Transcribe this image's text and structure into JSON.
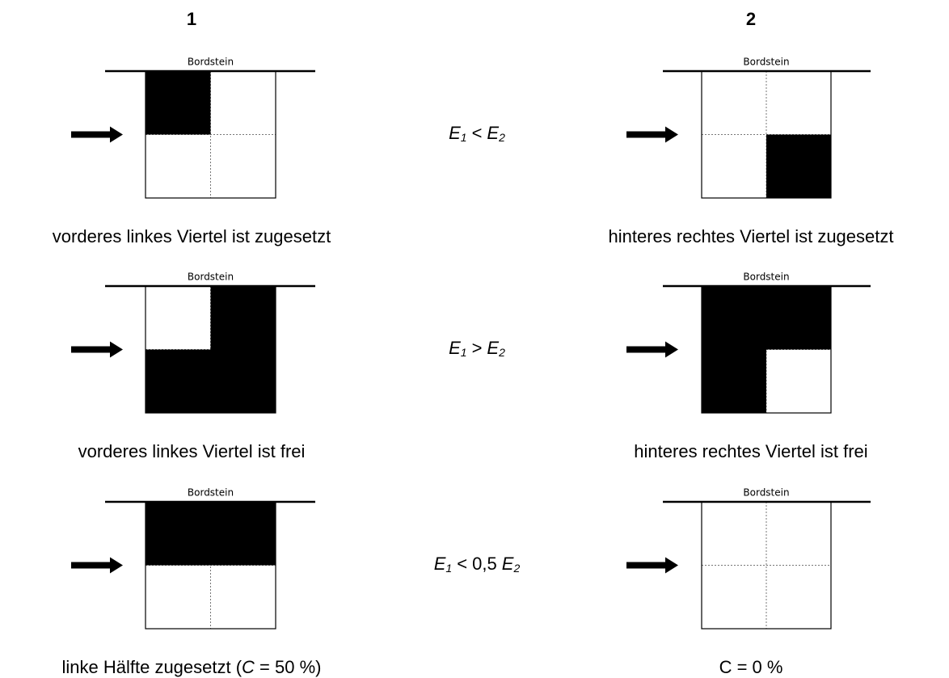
{
  "columns": [
    "1",
    "2"
  ],
  "rows": [
    {
      "left": {
        "curb": "Bordstein",
        "caption": [
          "vorderes linkes Viertel ist zugesetzt"
        ]
      },
      "formula": [
        "E",
        "1",
        "<",
        "E",
        "2"
      ],
      "right": {
        "curb": "Bordstein",
        "caption": [
          "hinteres rechtes Viertel ist zugesetzt"
        ]
      }
    },
    {
      "left": {
        "curb": "Bordstein",
        "caption": [
          "vorderes linkes Viertel ist frei"
        ]
      },
      "formula": [
        "E",
        "1",
        ">",
        "E",
        "2"
      ],
      "right": {
        "curb": "Bordstein",
        "caption": [
          "hinteres rechtes Viertel ist frei"
        ]
      }
    },
    {
      "left": {
        "curb": "Bordstein",
        "caption": [
          "linke Hälfte zugesetzt (",
          "C",
          " = 50 %)"
        ]
      },
      "formula": [
        "E",
        "1",
        "< 0,5",
        "E",
        "2"
      ],
      "right": {
        "curb": "Bordstein",
        "caption": [
          "C  = 0 %"
        ]
      }
    }
  ]
}
